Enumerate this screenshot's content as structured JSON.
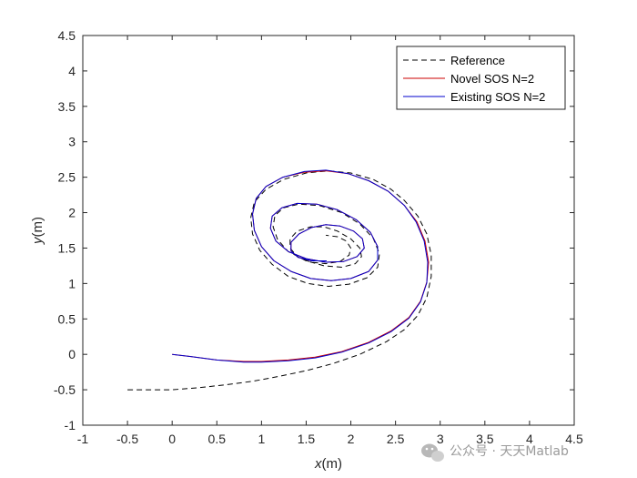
{
  "chart_data": {
    "type": "line",
    "xlabel": "x",
    "xlabel_unit": "(m)",
    "ylabel": "y",
    "ylabel_unit": "(m)",
    "xlim": [
      -1,
      4.5
    ],
    "ylim": [
      -1,
      4.5
    ],
    "x_ticks": [
      -1,
      -0.5,
      0,
      0.5,
      1,
      1.5,
      2,
      2.5,
      3,
      3.5,
      4,
      4.5
    ],
    "x_tick_labels": [
      "-1",
      "-0.5",
      "0",
      "0.5",
      "1",
      "1.5",
      "2",
      "2.5",
      "3",
      "3.5",
      "4",
      "4.5"
    ],
    "y_ticks": [
      -1,
      -0.5,
      0,
      0.5,
      1,
      1.5,
      2,
      2.5,
      3,
      3.5,
      4,
      4.5
    ],
    "y_tick_labels": [
      "-1",
      "-0.5",
      "0",
      "0.5",
      "1",
      "1.5",
      "2",
      "2.5",
      "3",
      "3.5",
      "4",
      "4.5"
    ],
    "grid": false,
    "legend_position": "top-right",
    "series": [
      {
        "name": "Reference",
        "color": "#000000",
        "style": "dashed",
        "x": [
          -0.5,
          0,
          0.3,
          0.6,
          0.9,
          1.2,
          1.5,
          1.8,
          2.1,
          2.4,
          2.6,
          2.75,
          2.85,
          2.9,
          2.9,
          2.85,
          2.75,
          2.6,
          2.45,
          2.25,
          2.0,
          1.75,
          1.5,
          1.25,
          1.05,
          0.92,
          0.88,
          0.9,
          0.98,
          1.12,
          1.3,
          1.52,
          1.75,
          1.98,
          2.18,
          2.3,
          2.32,
          2.25,
          2.1,
          1.9,
          1.65,
          1.42,
          1.25,
          1.15,
          1.13,
          1.18,
          1.3,
          1.5,
          1.7,
          1.9,
          2.05,
          2.12,
          2.1,
          2.0,
          1.85,
          1.7,
          1.55,
          1.4,
          1.32,
          1.32,
          1.4,
          1.55,
          1.72,
          1.88,
          1.98,
          2.0,
          1.95,
          1.85,
          1.72
        ],
        "y": [
          -0.5,
          -0.5,
          -0.47,
          -0.43,
          -0.38,
          -0.31,
          -0.23,
          -0.13,
          0.0,
          0.18,
          0.35,
          0.55,
          0.8,
          1.1,
          1.4,
          1.7,
          1.95,
          2.17,
          2.33,
          2.47,
          2.56,
          2.59,
          2.56,
          2.47,
          2.33,
          2.15,
          1.93,
          1.7,
          1.47,
          1.27,
          1.1,
          1.0,
          0.96,
          0.99,
          1.08,
          1.23,
          1.42,
          1.64,
          1.84,
          2.0,
          2.1,
          2.12,
          2.07,
          1.96,
          1.8,
          1.62,
          1.45,
          1.32,
          1.25,
          1.23,
          1.28,
          1.38,
          1.5,
          1.63,
          1.74,
          1.8,
          1.8,
          1.74,
          1.63,
          1.5,
          1.38,
          1.3,
          1.28,
          1.31,
          1.4,
          1.5,
          1.6,
          1.66,
          1.68
        ]
      },
      {
        "name": "Novel SOS N=2",
        "color": "#cc0000",
        "style": "solid",
        "x": [
          0,
          0.2,
          0.5,
          0.8,
          1.0,
          1.3,
          1.6,
          1.9,
          2.2,
          2.45,
          2.65,
          2.78,
          2.85,
          2.87,
          2.83,
          2.74,
          2.6,
          2.42,
          2.2,
          1.97,
          1.72,
          1.48,
          1.24,
          1.05,
          0.94,
          0.9,
          0.92,
          1.0,
          1.14,
          1.33,
          1.55,
          1.78,
          2.0,
          2.2,
          2.3,
          2.3,
          2.22,
          2.06,
          1.85,
          1.62,
          1.4,
          1.23,
          1.12,
          1.1,
          1.16,
          1.3,
          1.5,
          1.72,
          1.92,
          2.07,
          2.15,
          2.13,
          2.03,
          1.88,
          1.72,
          1.56,
          1.42,
          1.33,
          1.33,
          1.41,
          1.56,
          1.73
        ],
        "y": [
          0,
          -0.03,
          -0.08,
          -0.1,
          -0.1,
          -0.08,
          -0.04,
          0.04,
          0.17,
          0.33,
          0.52,
          0.75,
          1.02,
          1.3,
          1.6,
          1.87,
          2.1,
          2.3,
          2.45,
          2.55,
          2.59,
          2.57,
          2.5,
          2.37,
          2.2,
          1.98,
          1.75,
          1.52,
          1.32,
          1.17,
          1.07,
          1.04,
          1.07,
          1.17,
          1.33,
          1.52,
          1.72,
          1.9,
          2.04,
          2.12,
          2.13,
          2.07,
          1.95,
          1.78,
          1.6,
          1.45,
          1.35,
          1.3,
          1.31,
          1.38,
          1.5,
          1.63,
          1.74,
          1.81,
          1.83,
          1.79,
          1.7,
          1.58,
          1.46,
          1.37,
          1.32,
          1.32
        ]
      },
      {
        "name": "Existing SOS N=2",
        "color": "#0000cc",
        "style": "solid",
        "x": [
          0,
          0.2,
          0.5,
          0.8,
          1.0,
          1.3,
          1.6,
          1.9,
          2.2,
          2.45,
          2.65,
          2.78,
          2.85,
          2.86,
          2.82,
          2.73,
          2.6,
          2.42,
          2.2,
          1.97,
          1.72,
          1.48,
          1.24,
          1.05,
          0.94,
          0.9,
          0.92,
          1.0,
          1.14,
          1.33,
          1.55,
          1.78,
          2.0,
          2.2,
          2.3,
          2.3,
          2.22,
          2.06,
          1.85,
          1.62,
          1.4,
          1.23,
          1.12,
          1.1,
          1.16,
          1.3,
          1.5,
          1.72,
          1.92,
          2.07,
          2.15,
          2.13,
          2.03,
          1.88,
          1.72,
          1.56,
          1.42,
          1.33,
          1.33,
          1.41,
          1.56,
          1.73
        ],
        "y": [
          0,
          -0.03,
          -0.08,
          -0.11,
          -0.11,
          -0.09,
          -0.05,
          0.03,
          0.16,
          0.32,
          0.51,
          0.74,
          1.01,
          1.3,
          1.6,
          1.87,
          2.1,
          2.3,
          2.45,
          2.55,
          2.6,
          2.58,
          2.5,
          2.37,
          2.2,
          1.98,
          1.75,
          1.52,
          1.32,
          1.17,
          1.07,
          1.04,
          1.07,
          1.17,
          1.33,
          1.52,
          1.72,
          1.9,
          2.04,
          2.12,
          2.13,
          2.07,
          1.95,
          1.78,
          1.6,
          1.45,
          1.35,
          1.3,
          1.31,
          1.38,
          1.5,
          1.63,
          1.74,
          1.81,
          1.83,
          1.79,
          1.7,
          1.58,
          1.46,
          1.37,
          1.32,
          1.32
        ]
      }
    ]
  },
  "watermark": {
    "text": "公众号 · 天天Matlab",
    "icon": "wechat-icon"
  }
}
